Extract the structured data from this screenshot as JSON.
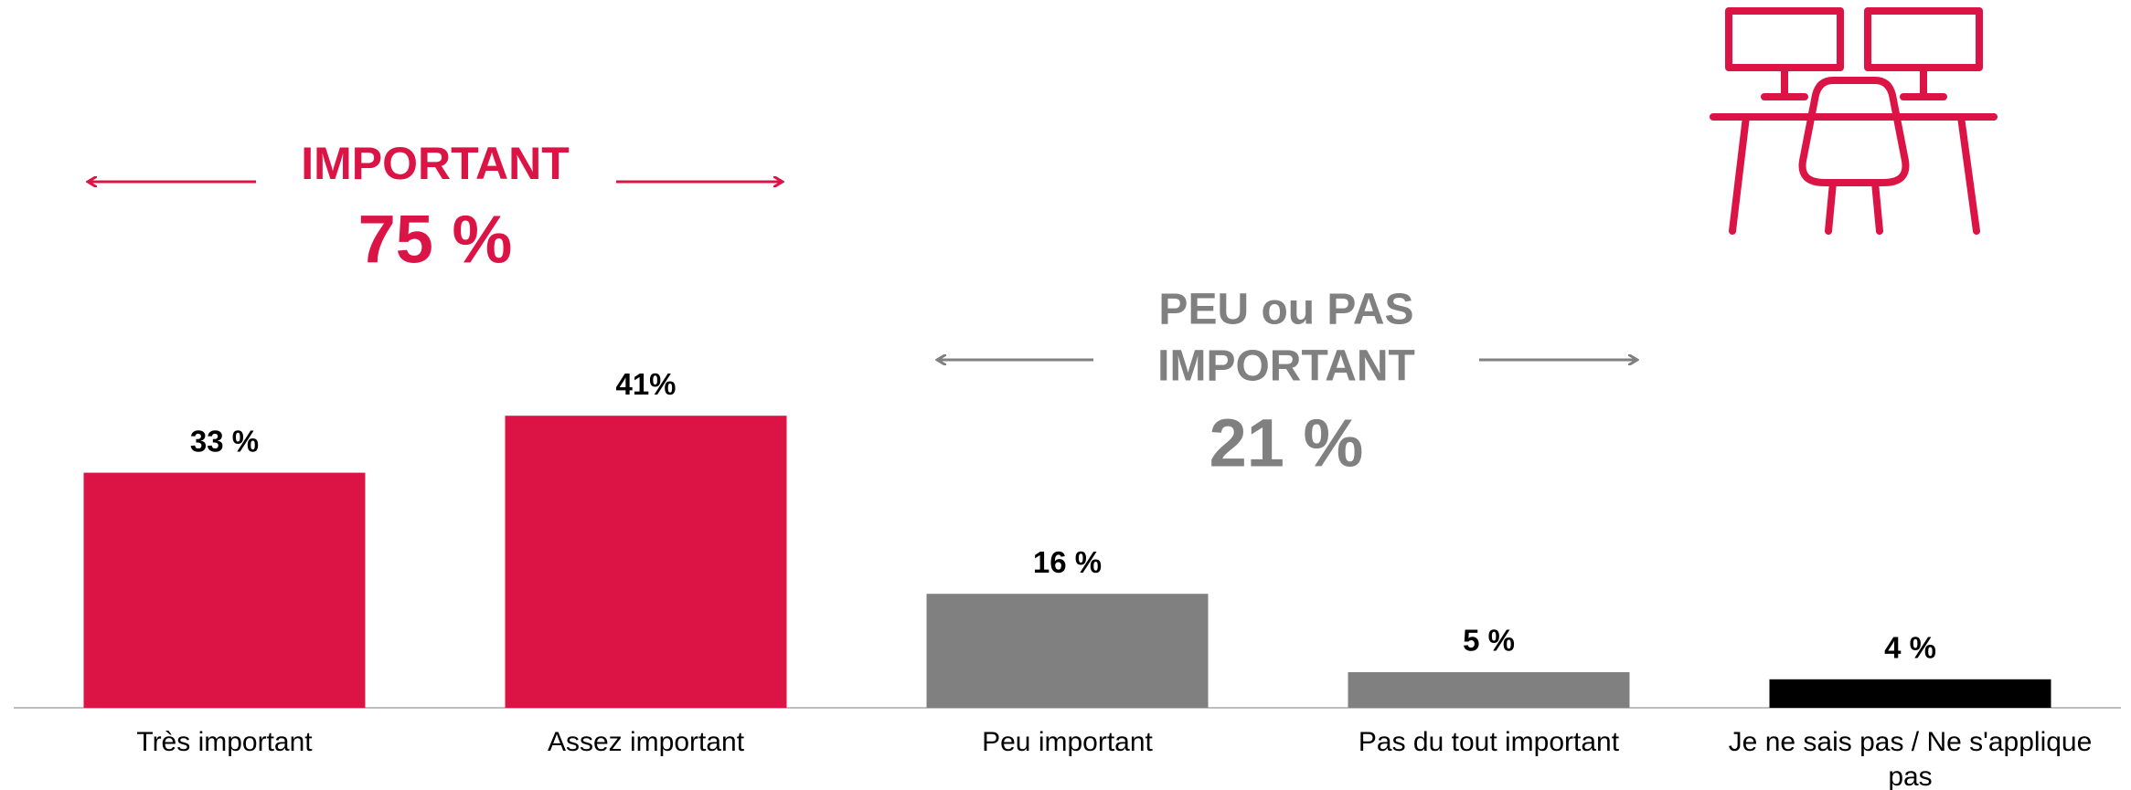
{
  "chart_data": {
    "type": "bar",
    "annotations": {
      "important": "IMPORTANT",
      "important_total": "75 %",
      "peu_line1": "PEU ou PAS",
      "peu_line2": "IMPORTANT",
      "peu_total": "21 %"
    },
    "categories": [
      "Très important",
      "Assez important",
      "Peu important",
      "Pas du tout important",
      "Je ne sais pas / Ne s'applique pas"
    ],
    "values": [
      33,
      41,
      16,
      5,
      4
    ],
    "value_labels": [
      "33 %",
      "41%",
      "16 %",
      "5 %",
      "4 %"
    ],
    "colors": [
      "#dc1446",
      "#dc1446",
      "#808080",
      "#808080",
      "#000000"
    ],
    "ylim": [
      0,
      45
    ]
  }
}
